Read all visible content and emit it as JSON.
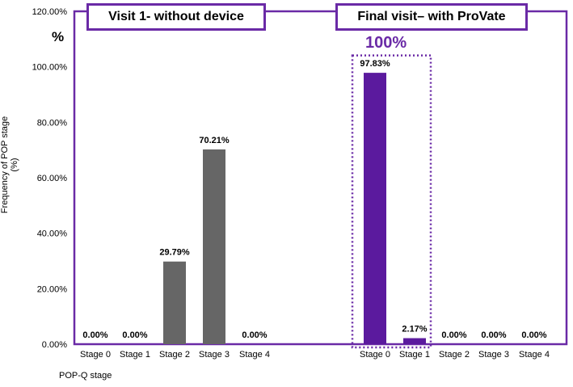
{
  "chart_data": {
    "type": "bar",
    "ylabel": "Frequency of POP stage (%)",
    "xlabel": "POP-Q stage",
    "ylim": [
      0,
      120
    ],
    "y_ticks": [
      "0.00%",
      "20.00%",
      "40.00%",
      "60.00%",
      "80.00%",
      "100.00%",
      "120.00%"
    ],
    "y_tick_values": [
      0,
      20,
      40,
      60,
      80,
      100,
      120
    ],
    "unit_label": "%",
    "highlight_label": "100%",
    "groups": [
      {
        "name": "Visit 1- without device",
        "color": "#666666",
        "categories": [
          "Stage 0",
          "Stage 1",
          "Stage 2",
          "Stage 3",
          "Stage 4"
        ],
        "values": [
          0,
          0,
          29.79,
          70.21,
          0
        ],
        "data_labels": [
          "0.00%",
          "0.00%",
          "29.79%",
          "70.21%",
          "0.00%"
        ]
      },
      {
        "name": "Final visit– with ProVate",
        "color": "#5b1a9e",
        "categories": [
          "Stage 0",
          "Stage 1",
          "Stage 2",
          "Stage 3",
          "Stage 4"
        ],
        "values": [
          97.83,
          2.17,
          0,
          0,
          0
        ],
        "data_labels": [
          "97.83%",
          "2.17%",
          "0.00%",
          "0.00%",
          "0.00%"
        ]
      }
    ]
  },
  "colors": {
    "frame": "#6a2aa6",
    "highlight": "#6a2aa6"
  }
}
